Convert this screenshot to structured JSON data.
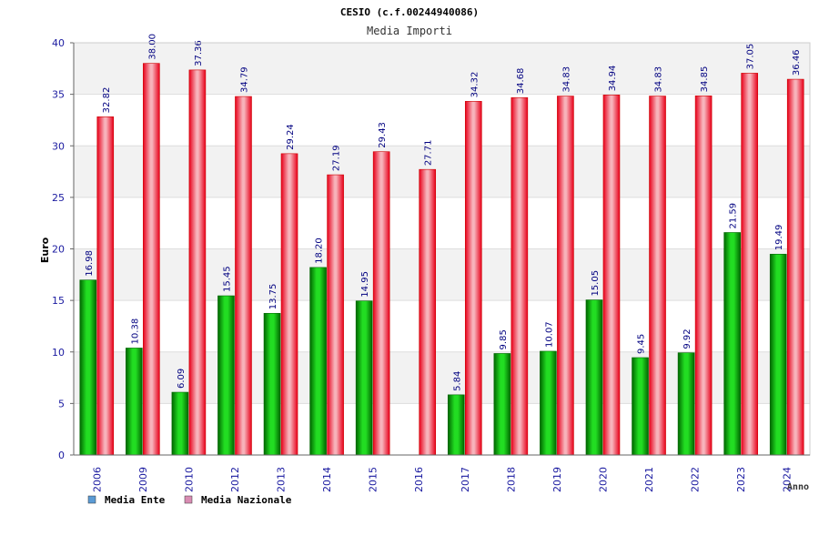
{
  "chart_data": {
    "type": "bar",
    "title": "CESIO (c.f.00244940086)",
    "subtitle": "Media Importi",
    "ylabel": "Euro",
    "xlabel": "Anno",
    "ylim": [
      0,
      40
    ],
    "yticks": [
      "0",
      "5",
      "10",
      "15",
      "20",
      "25",
      "30",
      "35",
      "40"
    ],
    "categories": [
      "2006",
      "2009",
      "2010",
      "2012",
      "2013",
      "2014",
      "2015",
      "2016",
      "2017",
      "2018",
      "2019",
      "2020",
      "2021",
      "2022",
      "2023",
      "2024"
    ],
    "series": [
      {
        "name": "Media Ente",
        "color": "#00aa00",
        "values": [
          16.98,
          10.38,
          6.09,
          15.45,
          13.75,
          18.2,
          14.95,
          null,
          5.84,
          9.85,
          10.07,
          15.05,
          9.45,
          9.92,
          21.59,
          19.49
        ],
        "labels": [
          "16.98",
          "10.38",
          "6.09",
          "15.45",
          "13.75",
          "18.20",
          "14.95",
          "",
          "5.84",
          "9.85",
          "10.07",
          "15.05",
          "9.45",
          "9.92",
          "21.59",
          "19.49"
        ]
      },
      {
        "name": "Media Nazionale",
        "color": "#ee1c24",
        "values": [
          32.82,
          38.0,
          37.36,
          34.79,
          29.24,
          27.19,
          29.43,
          27.71,
          34.32,
          34.68,
          34.83,
          34.94,
          34.83,
          34.85,
          37.05,
          36.46
        ],
        "labels": [
          "32.82",
          "38.00",
          "37.36",
          "34.79",
          "29.24",
          "27.19",
          "29.43",
          "27.71",
          "34.32",
          "34.68",
          "34.83",
          "34.94",
          "34.83",
          "34.85",
          "37.05",
          "36.46"
        ]
      }
    ],
    "grid": true,
    "legend": "bottom-left",
    "legend_entries": [
      {
        "name": "Media Ente",
        "swatch": "#5b9bd5"
      },
      {
        "name": "Media Nazionale",
        "swatch": "#d98cb3"
      }
    ]
  }
}
